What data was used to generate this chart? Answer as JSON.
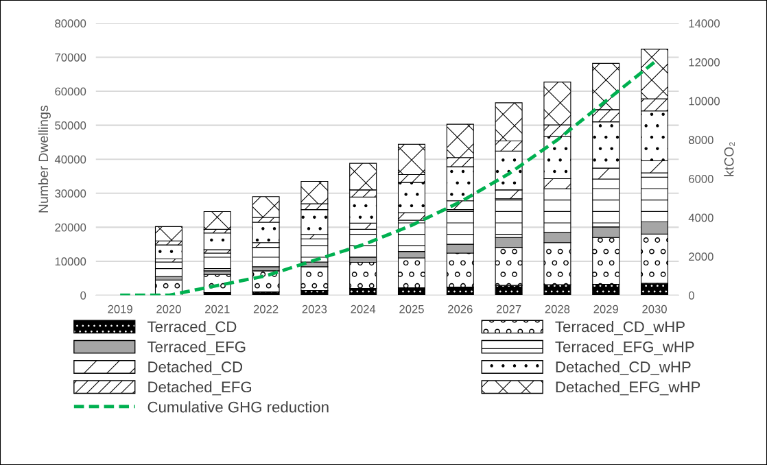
{
  "chart_data": {
    "type": "bar",
    "stacked": true,
    "ylabel": "Number Dwellings",
    "y2label": "ktCO₂",
    "categories": [
      "2019",
      "2020",
      "2021",
      "2022",
      "2023",
      "2024",
      "2025",
      "2026",
      "2027",
      "2028",
      "2029",
      "2030"
    ],
    "ylim": [
      0,
      80000
    ],
    "yticks": [
      0,
      10000,
      20000,
      30000,
      40000,
      50000,
      60000,
      70000,
      80000
    ],
    "y2lim": [
      0,
      14000
    ],
    "y2ticks": [
      0,
      2000,
      4000,
      6000,
      8000,
      10000,
      12000,
      14000
    ],
    "grid": "y",
    "legend": "bottom",
    "series": [
      {
        "name": "Terraced_CD",
        "color": "#000000",
        "values": [
          0,
          null,
          800,
          1000,
          1400,
          2000,
          2200,
          2400,
          2900,
          3100,
          3200,
          3500
        ]
      },
      {
        "name": "Terraced_CD_wHP",
        "color": "#000000",
        "values": [
          0,
          4500,
          5300,
          6200,
          7000,
          7700,
          8800,
          10000,
          11200,
          12400,
          13800,
          14500
        ]
      },
      {
        "name": "Terraced_EFG",
        "color": "#a6a6a6",
        "values": [
          0,
          1000,
          1100,
          1200,
          1400,
          1500,
          1900,
          2600,
          2900,
          3000,
          3100,
          3600
        ]
      },
      {
        "name": "Terraced_EFG_wHP",
        "color": "#000000",
        "values": [
          0,
          4300,
          5200,
          5700,
          6800,
          8200,
          9200,
          10200,
          11400,
          12800,
          14100,
          14400
        ]
      },
      {
        "name": "Detached_CD",
        "color": "#000000",
        "values": [
          0,
          900,
          1000,
          1400,
          1300,
          1800,
          2200,
          2600,
          2600,
          3000,
          3200,
          3600
        ]
      },
      {
        "name": "Detached_CD_wHP",
        "color": "#000000",
        "values": [
          0,
          4100,
          4900,
          6000,
          7300,
          7700,
          8900,
          10000,
          11400,
          12400,
          13600,
          14600
        ]
      },
      {
        "name": "Detached_EFG",
        "color": "#000000",
        "values": [
          0,
          1200,
          1100,
          1400,
          1700,
          2100,
          2300,
          2700,
          3000,
          3400,
          3600,
          3600
        ]
      },
      {
        "name": "Detached_EFG_wHP",
        "color": "#000000",
        "values": [
          0,
          4200,
          5200,
          6100,
          6600,
          7800,
          8900,
          9800,
          11200,
          12600,
          13600,
          14600
        ]
      },
      {
        "name": "Cumulative GHG reduction",
        "type": "line",
        "axis": "y2",
        "color": "#00b050",
        "line_style": "dashed",
        "values": [
          0,
          0,
          500,
          1000,
          1800,
          2600,
          3600,
          4800,
          6250,
          8000,
          10000,
          12000
        ]
      }
    ]
  }
}
